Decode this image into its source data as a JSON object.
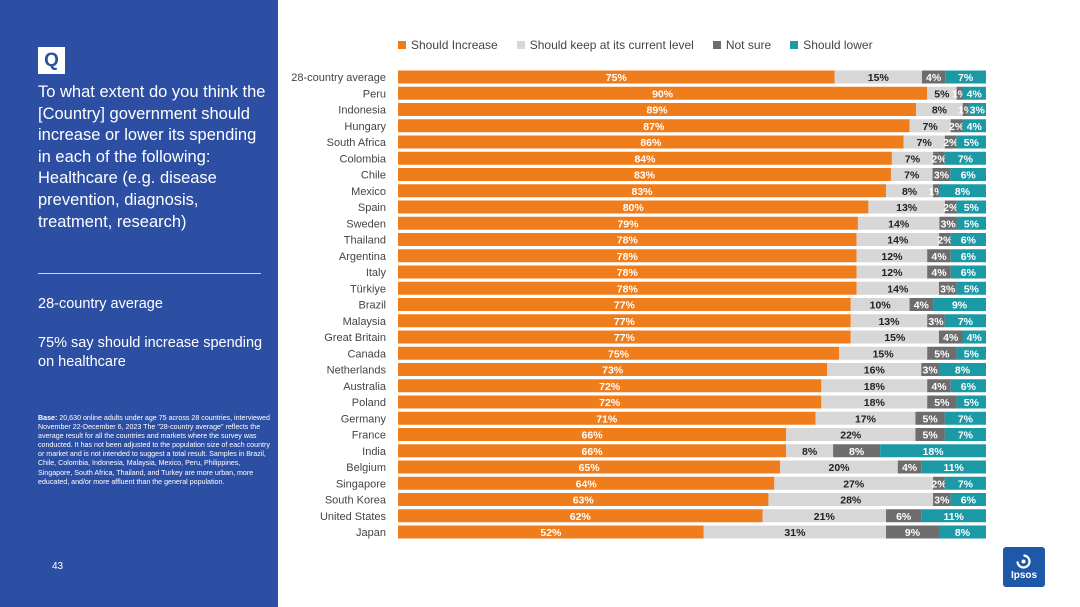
{
  "sidebar": {
    "badge": "Q",
    "question": "To what extent do you think the [Country] government should increase or lower its spending in each of the following: Healthcare (e.g. disease prevention, diagnosis, treatment, research)",
    "avg_label": "28-country average",
    "summary": "75% say should increase spending on healthcare",
    "base_label": "Base:",
    "base_text": "20,630 online adults under age 75 across 28 countries, interviewed November 22-December 6, 2023 The \"28-country average\" reflects the average result for all the countries and markets where the survey was conducted. It has not been adjusted to the population size of each country or market and is not intended to suggest a total result. Samples in Brazil, Chile, Colombia, Indonesia, Malaysia, Mexico, Peru, Philippines, Singapore, South Africa, Thailand, and Turkey are more urban, more educated, and/or more affluent than the general population.",
    "page_number": "43",
    "logo_text": "Ipsos"
  },
  "chart_data": {
    "type": "bar",
    "orientation": "horizontal",
    "stacked": true,
    "title": "",
    "xlabel": "",
    "ylabel": "",
    "xlim": [
      0,
      100
    ],
    "legend_position": "top",
    "colors": [
      "#f07d1c",
      "#d7d7d7",
      "#6d6d6d",
      "#1b9aa6"
    ],
    "categories": [
      "28-country average",
      "Peru",
      "Indonesia",
      "Hungary",
      "South Africa",
      "Colombia",
      "Chile",
      "Mexico",
      "Spain",
      "Sweden",
      "Thailand",
      "Argentina",
      "Italy",
      "Türkiye",
      "Brazil",
      "Malaysia",
      "Great Britain",
      "Canada",
      "Netherlands",
      "Australia",
      "Poland",
      "Germany",
      "France",
      "India",
      "Belgium",
      "Singapore",
      "South Korea",
      "United States",
      "Japan"
    ],
    "series": [
      {
        "name": "Should Increase",
        "values": [
          75,
          90,
          89,
          87,
          86,
          84,
          83,
          83,
          80,
          79,
          78,
          78,
          78,
          78,
          77,
          77,
          77,
          75,
          73,
          72,
          72,
          71,
          66,
          66,
          65,
          64,
          63,
          62,
          52
        ]
      },
      {
        "name": "Should keep at its current level",
        "values": [
          15,
          5,
          8,
          7,
          7,
          7,
          7,
          8,
          13,
          14,
          14,
          12,
          12,
          14,
          10,
          13,
          15,
          15,
          16,
          18,
          18,
          17,
          22,
          8,
          20,
          27,
          28,
          21,
          31
        ]
      },
      {
        "name": "Not sure",
        "values": [
          4,
          1,
          1,
          2,
          2,
          2,
          3,
          1,
          2,
          3,
          2,
          4,
          4,
          3,
          4,
          3,
          4,
          5,
          3,
          4,
          5,
          5,
          5,
          8,
          4,
          2,
          3,
          6,
          9
        ]
      },
      {
        "name": "Should lower",
        "values": [
          7,
          4,
          3,
          4,
          5,
          7,
          6,
          8,
          5,
          5,
          6,
          6,
          6,
          5,
          9,
          7,
          4,
          5,
          8,
          6,
          5,
          7,
          7,
          18,
          11,
          7,
          6,
          11,
          8
        ]
      }
    ],
    "labels": [
      [
        "75%",
        "90%",
        "89%",
        "87%",
        "86%",
        "84%",
        "83%",
        "83%",
        "80%",
        "79%",
        "78%",
        "78%",
        "78%",
        "78%",
        "77%",
        "77%",
        "77%",
        "75%",
        "73%",
        "72%",
        "72%",
        "71%",
        "66%",
        "66%",
        "65%",
        "64%",
        "63%",
        "62%",
        "52%"
      ],
      [
        "15%",
        "5%",
        "8%",
        "7%",
        "7%",
        "7%",
        "7%",
        "8%",
        "13%",
        "14%",
        "14%",
        "12%",
        "12%",
        "14%",
        "10%",
        "13%",
        "15%",
        "15%",
        "16%",
        "18%",
        "18%",
        "17%",
        "22%",
        "8%",
        "20%",
        "27%",
        "28%",
        "21%",
        "31%"
      ],
      [
        "4%",
        "1%",
        "1%",
        "2%",
        "2%",
        "2%",
        "3%",
        "1%",
        "2%",
        "3%",
        "2%",
        "4%",
        "4%",
        "3%",
        "4%",
        "3%",
        "4%",
        "5%",
        "3%",
        "4%",
        "5%",
        "5%",
        "5%",
        "8%",
        "4%",
        "2%",
        "3%",
        "6%",
        "9%"
      ],
      [
        "7%",
        "4%",
        "3%",
        "4%",
        "5%",
        "7%",
        "6%",
        "8%",
        "5%",
        "5%",
        "6%",
        "6%",
        "6%",
        "5%",
        "9%",
        "7%",
        "4%",
        "5%",
        "8%",
        "6%",
        "5%",
        "7%",
        "7%",
        "18%",
        "11%",
        "7%",
        "6%",
        "11%",
        "8%"
      ]
    ]
  }
}
